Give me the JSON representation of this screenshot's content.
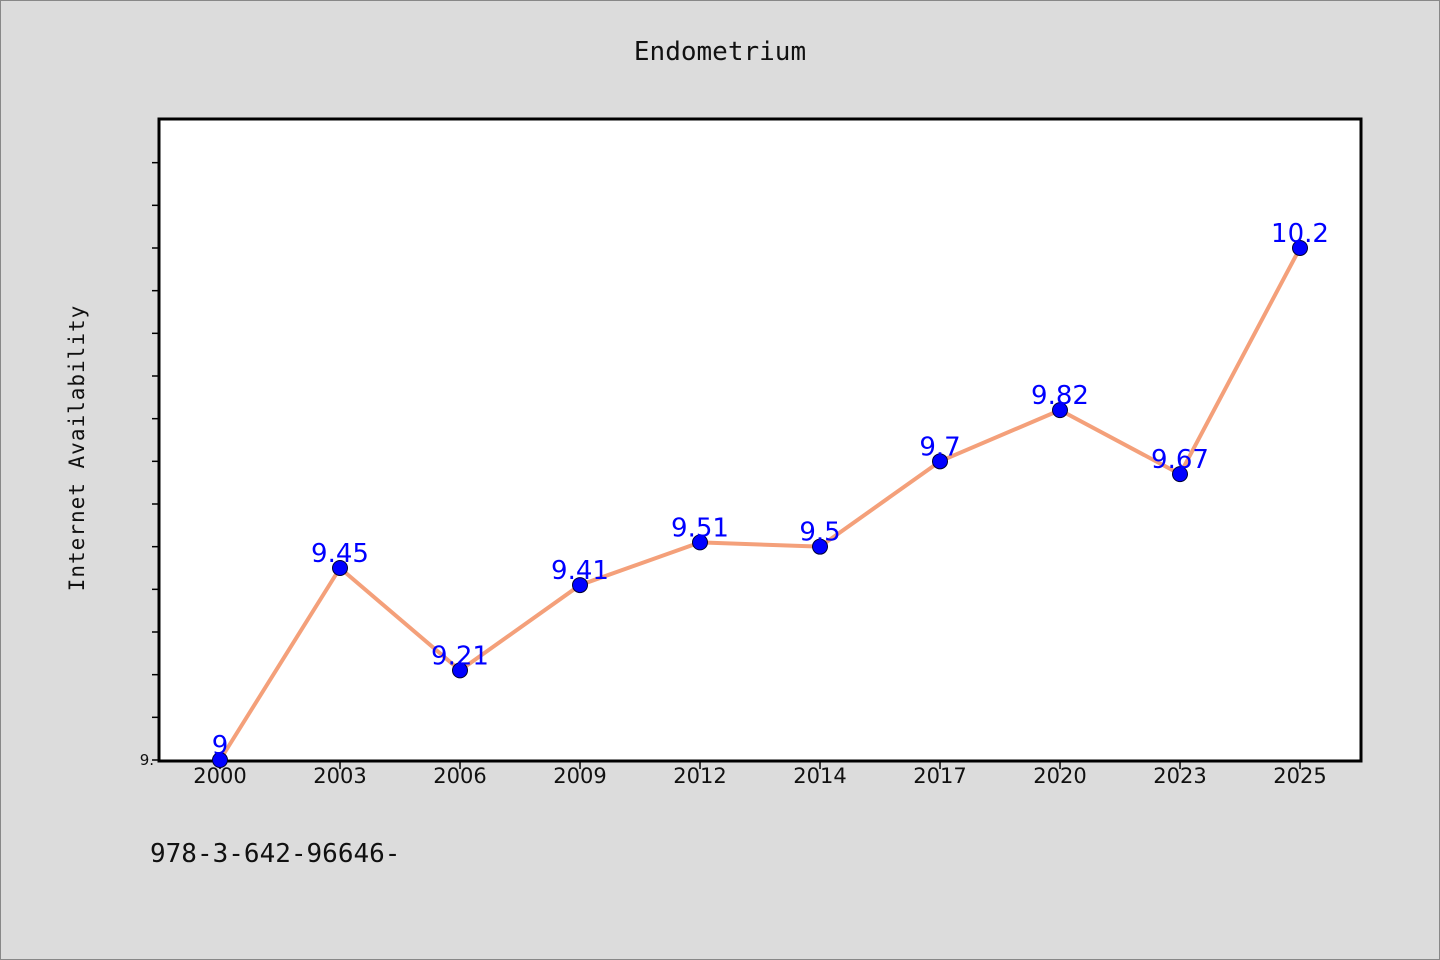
{
  "chart_data": {
    "type": "line",
    "title": "Endometrium",
    "ylabel": "Internet Availability",
    "xlabel": "",
    "x": [
      "2000",
      "2003",
      "2006",
      "2009",
      "2012",
      "2014",
      "2017",
      "2020",
      "2023",
      "2025"
    ],
    "values": [
      9,
      9.45,
      9.21,
      9.41,
      9.51,
      9.5,
      9.7,
      9.82,
      9.67,
      10.2
    ],
    "labels": [
      "9",
      "9.45",
      "9.21",
      "9.41",
      "9.51",
      "9.5",
      "9.7",
      "9.82",
      "9.67",
      "10.2"
    ],
    "ylim": [
      9.0,
      10.5
    ],
    "y_tick_labels": [
      "9."
    ],
    "grid": false,
    "line_color": "#f4a07a",
    "marker_color": "#0000ff",
    "label_color": "#0000ff",
    "background_color": "#dcdcdc"
  },
  "footer": {
    "text": "978-3-642-96646-"
  }
}
